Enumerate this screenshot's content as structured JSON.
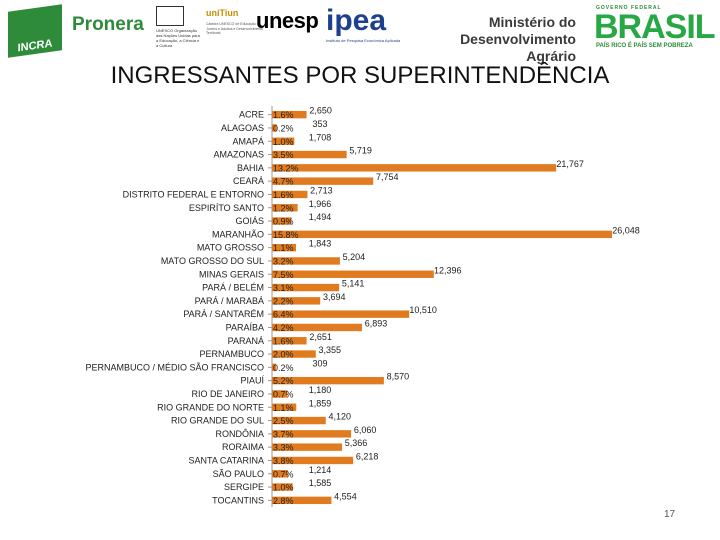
{
  "logos": {
    "incra": "INCRA",
    "pronera": "Pronera",
    "unesco_lines": "UNESCO\nOrganização das Nações Unidas para a Educação, a Ciência e a Cultura",
    "unitiun": "uniTiun",
    "unitiun_sub": "Cátedra UNESCO de Educação de Jovens e Adultos e Desenvolvimento Territorial",
    "unesp": "unesp",
    "ipea": "ipea",
    "ipea_sub": "Instituto de Pesquisa Econômica Aplicada",
    "mda_line1": "Ministério do",
    "mda_line2": "Desenvolvimento Agrário",
    "brasil_top": "GOVERNO FEDERAL",
    "brasil": "BRASIL",
    "brasil_sub": "PAÍS RICO É PAÍS SEM POBREZA"
  },
  "page_number": "17",
  "colors": {
    "bar": "#e07b20",
    "title": "#111111"
  },
  "chart_data": {
    "type": "bar",
    "orientation": "horizontal",
    "title": "INGRESSANTES POR SUPERINTENDÊNCIA",
    "xlim": [
      0,
      26048
    ],
    "categories": [
      "ACRE",
      "ALAGOAS",
      "AMAPÁ",
      "AMAZONAS",
      "BAHIA",
      "CEARÁ",
      "DISTRITO FEDERAL E ENTORNO",
      "ESPIRÍTO SANTO",
      "GOIÁS",
      "MARANHÃO",
      "MATO GROSSO",
      "MATO GROSSO DO SUL",
      "MINAS GERAIS",
      "PARÁ / BELÉM",
      "PARÁ / MARABÁ",
      "PARÁ / SANTARÉM",
      "PARAÍBA",
      "PARANÁ",
      "PERNAMBUCO",
      "PERNAMBUCO / MÉDIO SÃO FRANCISCO",
      "PIAUÍ",
      "RIO DE JANEIRO",
      "RIO GRANDE DO NORTE",
      "RIO GRANDE DO SUL",
      "RONDÔNIA",
      "RORAIMA",
      "SANTA CATARINA",
      "SÃO PAULO",
      "SERGIPE",
      "TOCANTINS"
    ],
    "values": [
      2650,
      353,
      1708,
      5719,
      21767,
      7754,
      2713,
      1966,
      1494,
      26048,
      1843,
      5204,
      12396,
      5141,
      3694,
      10510,
      6893,
      2651,
      3355,
      309,
      8570,
      1180,
      1859,
      4120,
      6060,
      5366,
      6218,
      1214,
      1585,
      4554
    ],
    "value_labels": [
      "2,650",
      "353",
      "1,708",
      "5,719",
      "21,767",
      "7,754",
      "2,713",
      "1,966",
      "1,494",
      "26,048",
      "1,843",
      "5,204",
      "12,396",
      "5,141",
      "3,694",
      "10,510",
      "6,893",
      "2,651",
      "3,355",
      "309",
      "8,570",
      "1,180",
      "1,859",
      "4,120",
      "6,060",
      "5,366",
      "6,218",
      "1,214",
      "1,585",
      "4,554"
    ],
    "percent_labels": [
      "1.6%",
      "0.2%",
      "1.0%",
      "3.5%",
      "13.2%",
      "4.7%",
      "1.6%",
      "1.2%",
      "0.9%",
      "15.8%",
      "1.1%",
      "3.2%",
      "7.5%",
      "3.1%",
      "2.2%",
      "6.4%",
      "4.2%",
      "1.6%",
      "2.0%",
      "0.2%",
      "5.2%",
      "0.7%",
      "1.1%",
      "2.5%",
      "3.7%",
      "3.3%",
      "3.8%",
      "0.7%",
      "1.0%",
      "2.8%"
    ]
  }
}
